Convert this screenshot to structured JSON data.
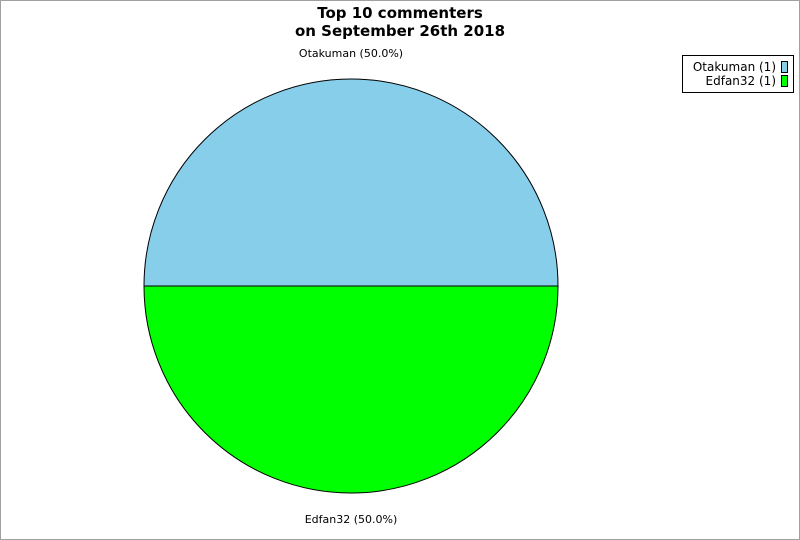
{
  "chart_data": {
    "type": "pie",
    "title": [
      "Top 10 commenters",
      "on September 26th 2018"
    ],
    "slices": [
      {
        "name": "Otakuman",
        "value": 1,
        "percent": "50.0%",
        "color": "#87ceeb",
        "label": "Otakuman (50.0%)",
        "legend": "Otakuman (1)"
      },
      {
        "name": "Edfan32",
        "value": 1,
        "percent": "50.0%",
        "color": "#00ff00",
        "label": "Edfan32 (50.0%)",
        "legend": "Edfan32 (1)"
      }
    ],
    "legend_position": "top-right"
  }
}
